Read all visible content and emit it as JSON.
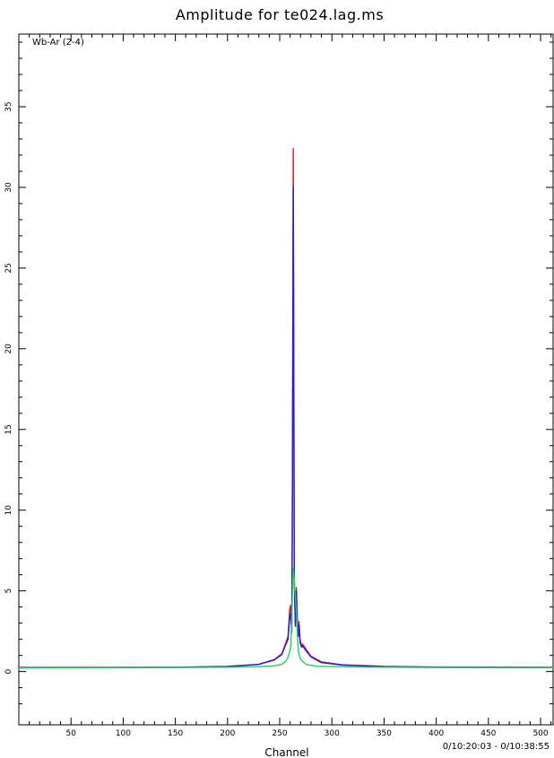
{
  "chart_data": {
    "type": "line",
    "title": "Amplitude for te024.lag.ms",
    "xlabel": "Channel",
    "ylabel": "",
    "xlim": [
      0,
      512
    ],
    "ylim": [
      -3.3,
      39.5
    ],
    "x_ticks": [
      50,
      100,
      150,
      200,
      250,
      300,
      350,
      400,
      450,
      500
    ],
    "y_ticks": [
      0,
      5,
      10,
      15,
      20,
      25,
      30,
      35
    ],
    "baseline_label": "Wb-Ar (2-4)",
    "time_range": "0/10:20:03 - 0/10:38:55",
    "grid": false,
    "series": [
      {
        "color": "#e8141e",
        "points": [
          [
            0,
            0.25
          ],
          [
            150,
            0.27
          ],
          [
            200,
            0.32
          ],
          [
            230,
            0.45
          ],
          [
            245,
            0.75
          ],
          [
            252,
            1.1
          ],
          [
            256,
            1.8
          ],
          [
            258,
            2.2
          ],
          [
            259.5,
            3.8
          ],
          [
            260.5,
            4.1
          ],
          [
            261.5,
            2.6
          ],
          [
            262,
            8.0
          ],
          [
            262.5,
            20.0
          ],
          [
            263,
            32.4
          ],
          [
            263.5,
            20.0
          ],
          [
            264,
            6.0
          ],
          [
            265,
            3.0
          ],
          [
            265.5,
            4.8
          ],
          [
            266,
            5.2
          ],
          [
            267,
            3.0
          ],
          [
            268,
            2.4
          ],
          [
            268.5,
            3.1
          ],
          [
            269.5,
            2.0
          ],
          [
            271,
            1.6
          ],
          [
            272,
            1.7
          ],
          [
            275,
            1.4
          ],
          [
            280,
            0.95
          ],
          [
            290,
            0.6
          ],
          [
            310,
            0.42
          ],
          [
            350,
            0.32
          ],
          [
            400,
            0.28
          ],
          [
            512,
            0.26
          ]
        ]
      },
      {
        "color": "#2020e0",
        "points": [
          [
            0,
            0.24
          ],
          [
            150,
            0.26
          ],
          [
            200,
            0.31
          ],
          [
            230,
            0.44
          ],
          [
            245,
            0.72
          ],
          [
            252,
            1.05
          ],
          [
            256,
            1.7
          ],
          [
            258,
            2.0
          ],
          [
            259.5,
            3.3
          ],
          [
            260.5,
            3.6
          ],
          [
            261.5,
            2.4
          ],
          [
            262,
            7.5
          ],
          [
            262.5,
            18.0
          ],
          [
            263,
            30.0
          ],
          [
            263.5,
            18.0
          ],
          [
            264,
            5.5
          ],
          [
            265,
            2.8
          ],
          [
            265.5,
            4.5
          ],
          [
            266,
            5.0
          ],
          [
            267,
            2.8
          ],
          [
            268,
            2.2
          ],
          [
            268.5,
            2.9
          ],
          [
            269.5,
            1.8
          ],
          [
            271,
            1.5
          ],
          [
            272,
            1.6
          ],
          [
            275,
            1.3
          ],
          [
            280,
            0.9
          ],
          [
            290,
            0.55
          ],
          [
            310,
            0.4
          ],
          [
            350,
            0.3
          ],
          [
            400,
            0.27
          ],
          [
            512,
            0.25
          ]
        ]
      },
      {
        "color": "#22d05a",
        "points": [
          [
            0,
            0.22
          ],
          [
            150,
            0.25
          ],
          [
            200,
            0.27
          ],
          [
            230,
            0.3
          ],
          [
            245,
            0.36
          ],
          [
            252,
            0.45
          ],
          [
            256,
            0.65
          ],
          [
            258,
            0.9
          ],
          [
            259.5,
            1.2
          ],
          [
            260.5,
            1.5
          ],
          [
            261.5,
            3.0
          ],
          [
            262.5,
            5.6
          ],
          [
            263,
            6.4
          ],
          [
            263.8,
            5.8
          ],
          [
            264.5,
            5.0
          ],
          [
            265.2,
            4.6
          ],
          [
            266,
            3.6
          ],
          [
            267,
            2.2
          ],
          [
            268,
            1.2
          ],
          [
            270,
            0.75
          ],
          [
            275,
            0.45
          ],
          [
            285,
            0.33
          ],
          [
            320,
            0.28
          ],
          [
            400,
            0.25
          ],
          [
            512,
            0.24
          ]
        ]
      }
    ]
  }
}
